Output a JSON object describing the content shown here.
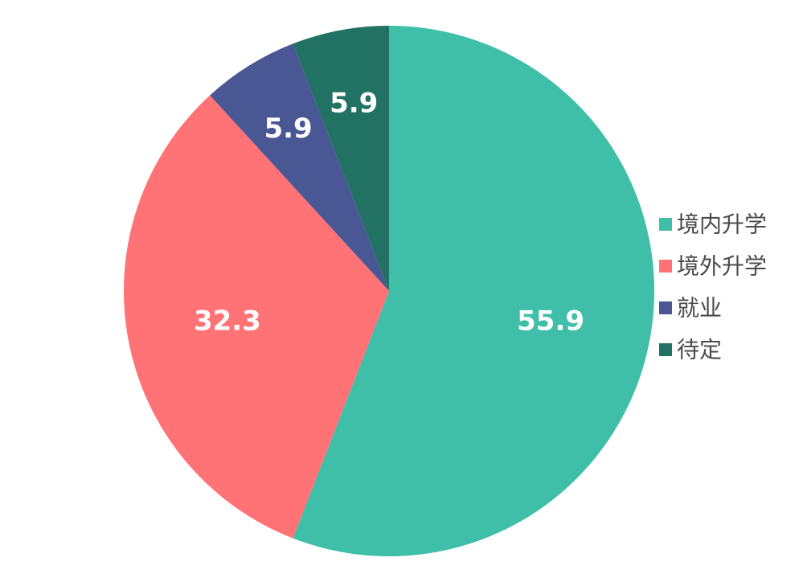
{
  "chart_data": {
    "type": "pie",
    "title": "",
    "categories": [
      "境内升学",
      "境外升学",
      "就业",
      "待定"
    ],
    "values": [
      55.9,
      32.3,
      5.9,
      5.9
    ],
    "data_labels": [
      "55.9",
      "32.3",
      "5.9",
      "5.9"
    ],
    "colors": [
      "#3fbfa8",
      "#ff7276",
      "#495795",
      "#217262"
    ],
    "start_angle_deg": 0,
    "direction": "clockwise",
    "legend_position": "right"
  }
}
